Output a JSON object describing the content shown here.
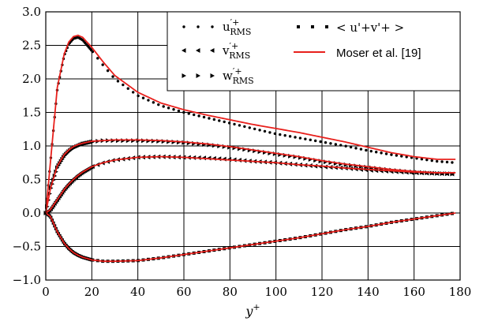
{
  "chart_data": {
    "type": "line",
    "xlabel": "y+",
    "ylabel": "",
    "xlim": [
      0,
      180
    ],
    "ylim": [
      -1.0,
      3.0
    ],
    "grid": true,
    "legend_position": "top-right",
    "x_ticks": [
      "0",
      "20",
      "40",
      "60",
      "80",
      "100",
      "120",
      "140",
      "160",
      "180"
    ],
    "y_ticks": [
      "−1.0",
      "−0.5",
      "0.0",
      "0.5",
      "1.0",
      "1.5",
      "2.0",
      "2.5",
      "3.0"
    ],
    "x": [
      0,
      2,
      5,
      8,
      10,
      12,
      14,
      16,
      20,
      25,
      30,
      40,
      50,
      60,
      70,
      80,
      90,
      100,
      110,
      120,
      130,
      140,
      150,
      160,
      170,
      178
    ],
    "series": [
      {
        "name": "u'+_RMS",
        "style": "dots",
        "color": "#000000",
        "values": [
          0,
          0.75,
          1.85,
          2.35,
          2.52,
          2.6,
          2.62,
          2.58,
          2.42,
          2.2,
          2.0,
          1.75,
          1.6,
          1.5,
          1.42,
          1.34,
          1.26,
          1.18,
          1.12,
          1.06,
          1.0,
          0.93,
          0.87,
          0.82,
          0.77,
          0.75
        ]
      },
      {
        "name": "Moser et al. [19] (u)",
        "style": "line",
        "color": "#e8201c",
        "values": [
          0,
          0.75,
          1.87,
          2.37,
          2.55,
          2.63,
          2.65,
          2.62,
          2.47,
          2.25,
          2.05,
          1.8,
          1.64,
          1.54,
          1.46,
          1.39,
          1.32,
          1.26,
          1.2,
          1.13,
          1.06,
          0.98,
          0.9,
          0.84,
          0.8,
          0.8
        ]
      },
      {
        "name": "v'+_RMS",
        "style": "triangle-left",
        "color": "#000000",
        "values": [
          0,
          0.05,
          0.2,
          0.35,
          0.43,
          0.5,
          0.56,
          0.61,
          0.69,
          0.75,
          0.79,
          0.83,
          0.84,
          0.83,
          0.82,
          0.8,
          0.77,
          0.75,
          0.72,
          0.69,
          0.67,
          0.64,
          0.62,
          0.6,
          0.59,
          0.58
        ]
      },
      {
        "name": "Moser et al. [19] (v)",
        "style": "line",
        "color": "#e8201c",
        "values": [
          0,
          0.05,
          0.2,
          0.35,
          0.43,
          0.5,
          0.56,
          0.61,
          0.69,
          0.75,
          0.79,
          0.83,
          0.84,
          0.83,
          0.81,
          0.79,
          0.77,
          0.75,
          0.72,
          0.7,
          0.67,
          0.65,
          0.63,
          0.61,
          0.6,
          0.6
        ]
      },
      {
        "name": "w'+_RMS",
        "style": "triangle-right",
        "color": "#000000",
        "values": [
          0,
          0.35,
          0.68,
          0.85,
          0.92,
          0.97,
          1.0,
          1.03,
          1.06,
          1.08,
          1.08,
          1.08,
          1.07,
          1.05,
          1.02,
          0.98,
          0.93,
          0.88,
          0.83,
          0.77,
          0.72,
          0.68,
          0.64,
          0.61,
          0.59,
          0.58
        ]
      },
      {
        "name": "Moser et al. [19] (w)",
        "style": "line",
        "color": "#e8201c",
        "values": [
          0,
          0.36,
          0.7,
          0.87,
          0.94,
          0.99,
          1.02,
          1.04,
          1.07,
          1.08,
          1.09,
          1.09,
          1.08,
          1.06,
          1.03,
          0.99,
          0.94,
          0.89,
          0.84,
          0.78,
          0.73,
          0.69,
          0.65,
          0.62,
          0.6,
          0.6
        ]
      },
      {
        "name": "<u'+v'+>",
        "style": "squares",
        "color": "#000000",
        "values": [
          0,
          -0.05,
          -0.28,
          -0.45,
          -0.53,
          -0.59,
          -0.63,
          -0.66,
          -0.7,
          -0.72,
          -0.72,
          -0.71,
          -0.67,
          -0.62,
          -0.57,
          -0.52,
          -0.47,
          -0.42,
          -0.37,
          -0.31,
          -0.25,
          -0.2,
          -0.14,
          -0.09,
          -0.04,
          0.0
        ]
      },
      {
        "name": "Moser et al. [19] (uv)",
        "style": "line",
        "color": "#e8201c",
        "values": [
          0,
          -0.05,
          -0.28,
          -0.45,
          -0.53,
          -0.59,
          -0.63,
          -0.66,
          -0.7,
          -0.72,
          -0.72,
          -0.71,
          -0.67,
          -0.62,
          -0.57,
          -0.52,
          -0.47,
          -0.42,
          -0.37,
          -0.31,
          -0.25,
          -0.2,
          -0.14,
          -0.09,
          -0.04,
          0.0
        ]
      }
    ],
    "legend": [
      {
        "label": "u'+ RMS",
        "marker": "dots"
      },
      {
        "label": "v'+ RMS",
        "marker": "triangle-left"
      },
      {
        "label": "w'+ RMS",
        "marker": "triangle-right"
      },
      {
        "label": "< u'+v'+ >",
        "marker": "squares"
      },
      {
        "label": "Moser et al. [19]",
        "marker": "line",
        "color": "#e8201c"
      }
    ]
  }
}
